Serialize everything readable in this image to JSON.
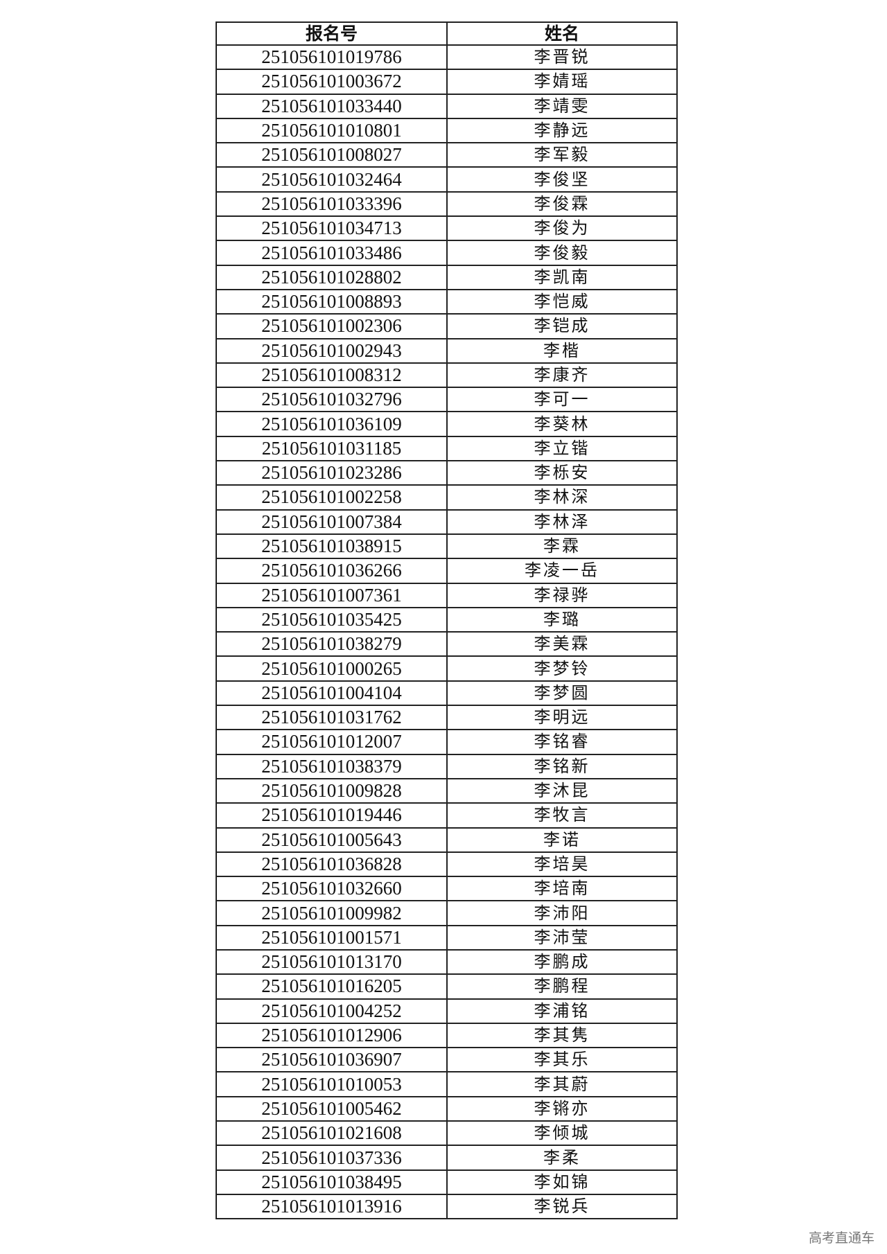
{
  "table": {
    "headers": [
      "报名号",
      "姓名"
    ],
    "rows": [
      [
        "251056101019786",
        "李晋锐"
      ],
      [
        "251056101003672",
        "李婧瑶"
      ],
      [
        "251056101033440",
        "李靖雯"
      ],
      [
        "251056101010801",
        "李静远"
      ],
      [
        "251056101008027",
        "李军毅"
      ],
      [
        "251056101032464",
        "李俊坚"
      ],
      [
        "251056101033396",
        "李俊霖"
      ],
      [
        "251056101034713",
        "李俊为"
      ],
      [
        "251056101033486",
        "李俊毅"
      ],
      [
        "251056101028802",
        "李凯南"
      ],
      [
        "251056101008893",
        "李恺威"
      ],
      [
        "251056101002306",
        "李铠成"
      ],
      [
        "251056101002943",
        "李楷"
      ],
      [
        "251056101008312",
        "李康齐"
      ],
      [
        "251056101032796",
        "李可一"
      ],
      [
        "251056101036109",
        "李葵林"
      ],
      [
        "251056101031185",
        "李立锴"
      ],
      [
        "251056101023286",
        "李栎安"
      ],
      [
        "251056101002258",
        "李林深"
      ],
      [
        "251056101007384",
        "李林泽"
      ],
      [
        "251056101038915",
        "李霖"
      ],
      [
        "251056101036266",
        "李凌一岳"
      ],
      [
        "251056101007361",
        "李禄骅"
      ],
      [
        "251056101035425",
        "李璐"
      ],
      [
        "251056101038279",
        "李美霖"
      ],
      [
        "251056101000265",
        "李梦铃"
      ],
      [
        "251056101004104",
        "李梦圆"
      ],
      [
        "251056101031762",
        "李明远"
      ],
      [
        "251056101012007",
        "李铭睿"
      ],
      [
        "251056101038379",
        "李铭新"
      ],
      [
        "251056101009828",
        "李沐昆"
      ],
      [
        "251056101019446",
        "李牧言"
      ],
      [
        "251056101005643",
        "李诺"
      ],
      [
        "251056101036828",
        "李培昊"
      ],
      [
        "251056101032660",
        "李培南"
      ],
      [
        "251056101009982",
        "李沛阳"
      ],
      [
        "251056101001571",
        "李沛莹"
      ],
      [
        "251056101013170",
        "李鹏成"
      ],
      [
        "251056101016205",
        "李鹏程"
      ],
      [
        "251056101004252",
        "李浦铭"
      ],
      [
        "251056101012906",
        "李其隽"
      ],
      [
        "251056101036907",
        "李其乐"
      ],
      [
        "251056101010053",
        "李其蔚"
      ],
      [
        "251056101005462",
        "李锵亦"
      ],
      [
        "251056101021608",
        "李倾城"
      ],
      [
        "251056101037336",
        "李柔"
      ],
      [
        "251056101038495",
        "李如锦"
      ],
      [
        "251056101013916",
        "李锐兵"
      ]
    ]
  },
  "watermark": "高考直通车"
}
